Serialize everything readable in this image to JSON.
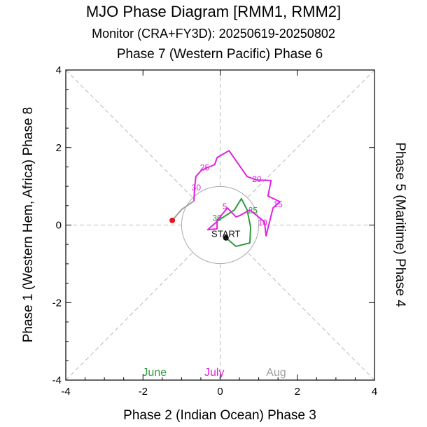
{
  "chart_data": {
    "type": "line",
    "title": "MJO Phase Diagram [RMM1, RMM2]",
    "subtitle": "Monitor (CRA+FY3D): 20250619-20250802",
    "xlabel": "Phase 2 (Indian Ocean) Phase 3",
    "ylabel_left": "Phase 1 (Western Hem, Africa) Phase 8",
    "ylabel_right": "Phase 5 (Maritime) Phase 4",
    "top_label": "Phase 7 (Western Pacific) Phase 6",
    "xlim": [
      -4,
      4
    ],
    "ylim": [
      -4,
      4
    ],
    "xticks": [
      "-4",
      "-2",
      "0",
      "2",
      "4"
    ],
    "yticks": [
      "-4",
      "-2",
      "0",
      "2",
      "4"
    ],
    "grid": "dashed phase lines",
    "unit_circle_radius": 1,
    "start_label": "START",
    "series": [
      {
        "name": "June",
        "color": "#2e9a3e",
        "points": [
          [
            0.15,
            -0.33
          ],
          [
            0.41,
            -0.55
          ],
          [
            0.77,
            -0.46
          ],
          [
            0.79,
            -0.06
          ],
          [
            0.7,
            0.39
          ],
          [
            0.55,
            0.68
          ],
          [
            0.37,
            0.39
          ],
          [
            -0.05,
            0.12
          ]
        ],
        "labels": [
          {
            "text": "25",
            "x": 0.85,
            "y": 0.4
          },
          {
            "text": "30",
            "x": -0.08,
            "y": 0.2
          }
        ]
      },
      {
        "name": "July",
        "color": "#e020e0",
        "points": [
          [
            -0.05,
            0.12
          ],
          [
            -0.32,
            -0.12
          ],
          [
            -0.08,
            -0.1
          ],
          [
            -0.08,
            0.12
          ],
          [
            0.19,
            0.44
          ],
          [
            0.41,
            0.21
          ],
          [
            0.5,
            0.24
          ],
          [
            0.77,
            0.39
          ],
          [
            1.15,
            0.08
          ],
          [
            1.19,
            -0.28
          ],
          [
            1.37,
            0.44
          ],
          [
            1.55,
            0.6
          ],
          [
            1.24,
            0.75
          ],
          [
            1.32,
            1.15
          ],
          [
            0.95,
            1.16
          ],
          [
            0.7,
            1.25
          ],
          [
            0.23,
            1.92
          ],
          [
            -0.08,
            1.74
          ],
          [
            -0.14,
            1.56
          ],
          [
            -0.48,
            1.42
          ],
          [
            -0.63,
            1.25
          ],
          [
            -0.66,
            0.98
          ],
          [
            -0.68,
            0.62
          ]
        ],
        "labels": [
          {
            "text": "5",
            "x": 0.12,
            "y": 0.5
          },
          {
            "text": "10",
            "x": 1.1,
            "y": 0.08
          },
          {
            "text": "15",
            "x": 1.5,
            "y": 0.55
          },
          {
            "text": "20",
            "x": 0.95,
            "y": 1.2
          },
          {
            "text": "25",
            "x": -0.4,
            "y": 1.5
          },
          {
            "text": "30",
            "x": -0.62,
            "y": 0.98
          }
        ]
      },
      {
        "name": "Aug",
        "color": "#a0a0a0",
        "points": [
          [
            -0.68,
            0.62
          ],
          [
            -1.0,
            0.4
          ],
          [
            -1.24,
            0.12
          ]
        ],
        "labels": []
      }
    ],
    "end_marker_color": "#e8141c",
    "start_marker_color": "#111111"
  }
}
